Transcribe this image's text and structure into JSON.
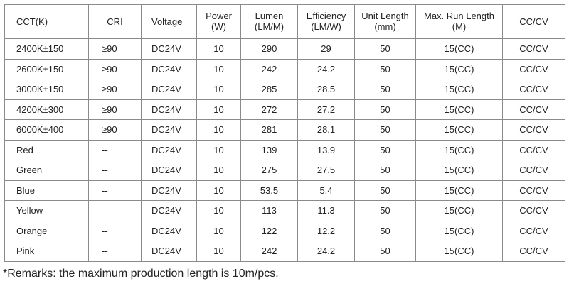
{
  "table": {
    "headers": [
      "CCT(K)",
      "CRI",
      "Voltage",
      "Power\n(W)",
      "Lumen\n(LM/M)",
      "Efficiency\n(LM/W)",
      "Unit Length\n(mm)",
      "Max. Run Length\n(M)",
      "CC/CV"
    ],
    "rows": [
      [
        "2400K±150",
        "≥90",
        "DC24V",
        "10",
        "290",
        "29",
        "50",
        "15(CC)",
        "CC/CV"
      ],
      [
        "2600K±150",
        "≥90",
        "DC24V",
        "10",
        "242",
        "24.2",
        "50",
        "15(CC)",
        "CC/CV"
      ],
      [
        "3000K±150",
        "≥90",
        "DC24V",
        "10",
        "285",
        "28.5",
        "50",
        "15(CC)",
        "CC/CV"
      ],
      [
        "4200K±300",
        "≥90",
        "DC24V",
        "10",
        "272",
        "27.2",
        "50",
        "15(CC)",
        "CC/CV"
      ],
      [
        "6000K±400",
        "≥90",
        "DC24V",
        "10",
        "281",
        "28.1",
        "50",
        "15(CC)",
        "CC/CV"
      ],
      [
        "Red",
        "--",
        "DC24V",
        "10",
        "139",
        "13.9",
        "50",
        "15(CC)",
        "CC/CV"
      ],
      [
        "Green",
        "--",
        "DC24V",
        "10",
        "275",
        "27.5",
        "50",
        "15(CC)",
        "CC/CV"
      ],
      [
        "Blue",
        "--",
        "DC24V",
        "10",
        "53.5",
        "5.4",
        "50",
        "15(CC)",
        "CC/CV"
      ],
      [
        "Yellow",
        "--",
        "DC24V",
        "10",
        "113",
        "11.3",
        "50",
        "15(CC)",
        "CC/CV"
      ],
      [
        "Orange",
        "--",
        "DC24V",
        "10",
        "122",
        "12.2",
        "50",
        "15(CC)",
        "CC/CV"
      ],
      [
        "Pink",
        "--",
        "DC24V",
        "10",
        "242",
        "24.2",
        "50",
        "15(CC)",
        "CC/CV"
      ]
    ]
  },
  "remarks": "*Remarks: the maximum production length is 10m/pcs.",
  "colors": {
    "border": "#8a8a8a",
    "text": "#222222",
    "background": "#ffffff"
  }
}
